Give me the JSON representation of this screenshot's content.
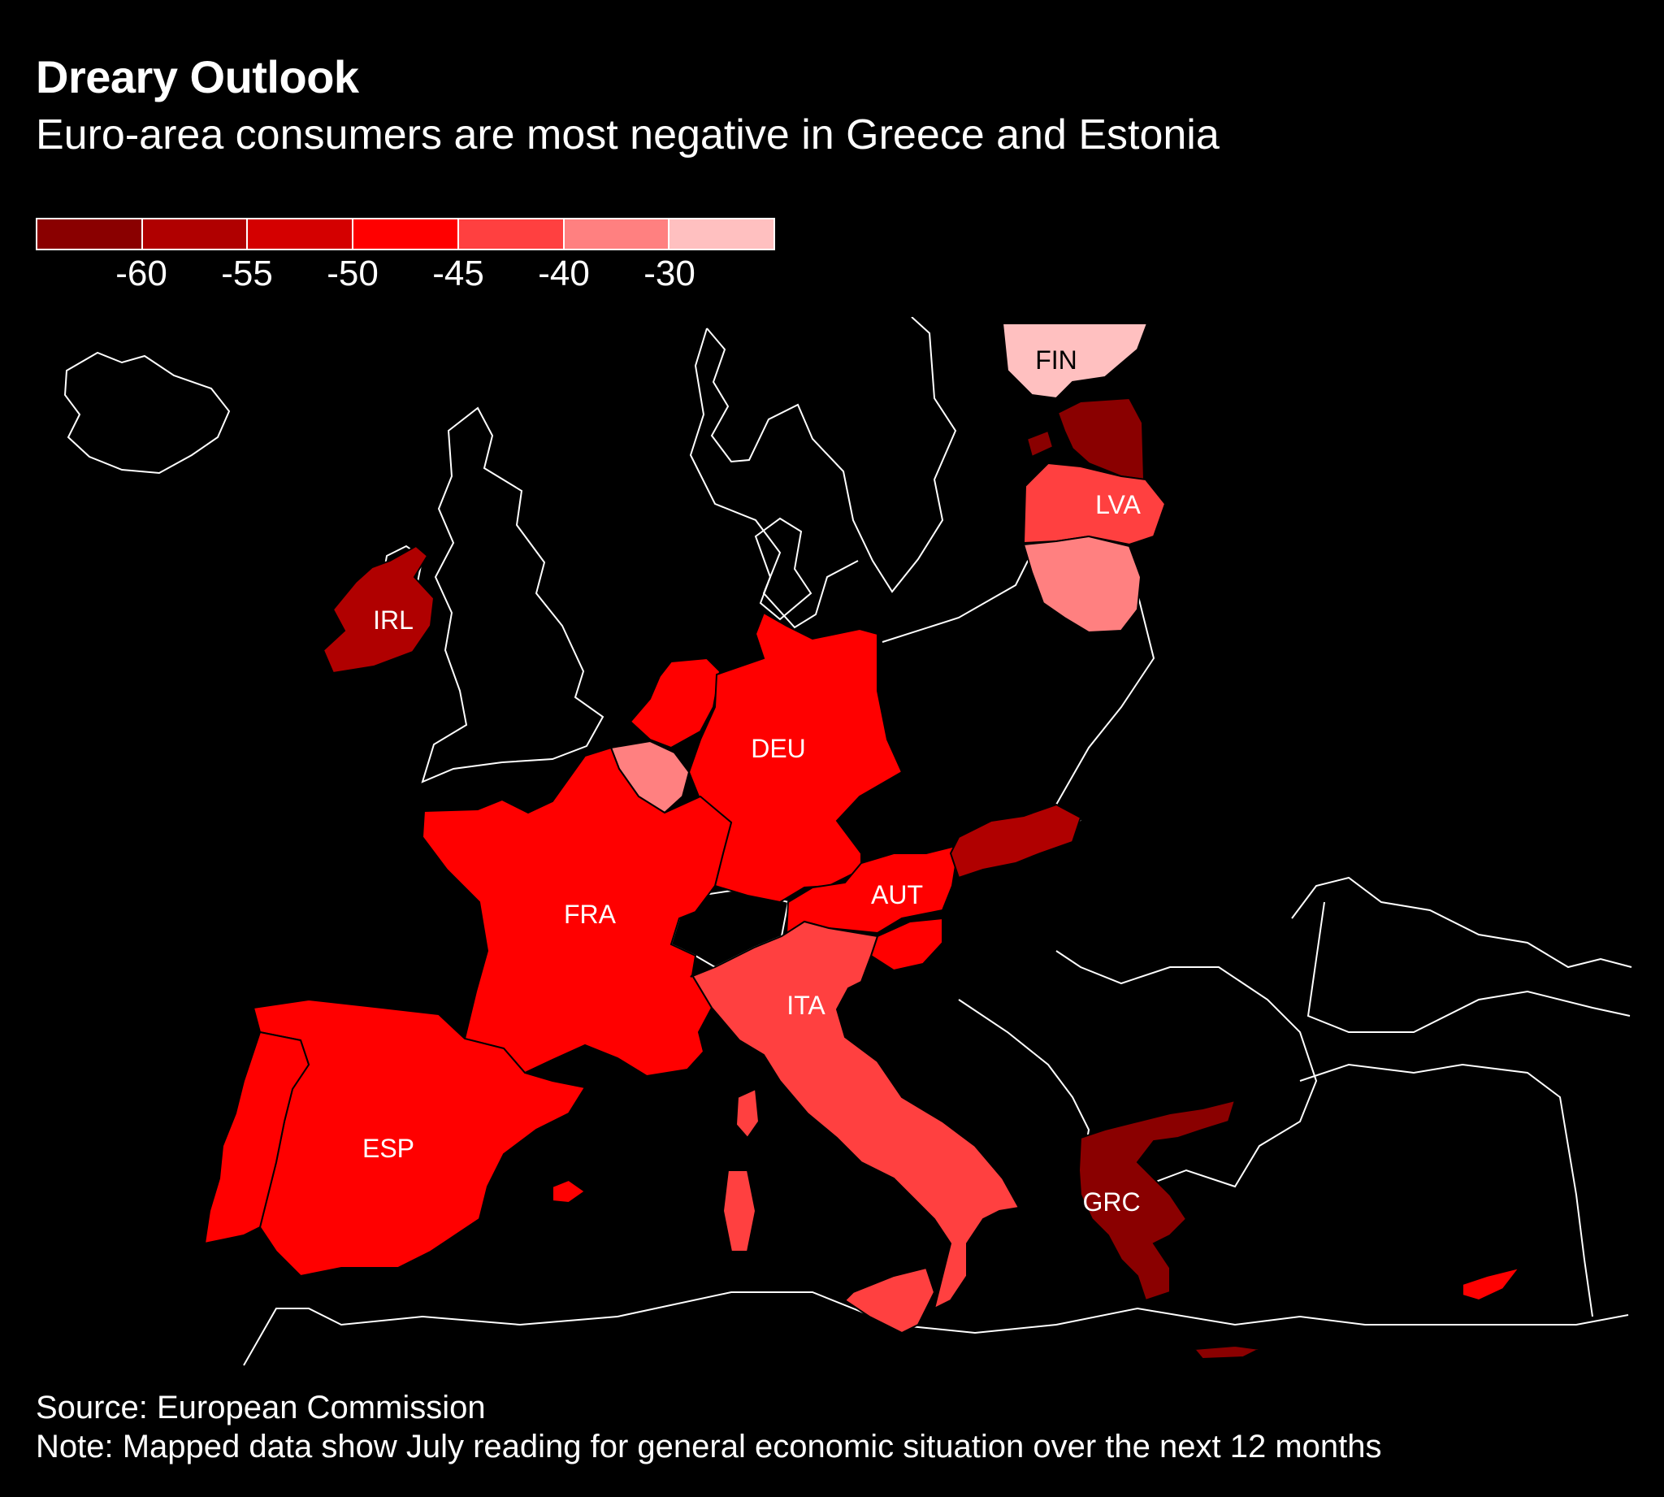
{
  "title": "Dreary Outlook",
  "subtitle": "Euro-area consumers are most negative in Greece and Estonia",
  "legend": {
    "colors": [
      "#8a0000",
      "#b00000",
      "#d40000",
      "#ff0000",
      "#ff4040",
      "#ff8080",
      "#ffc0c0"
    ],
    "ticks": [
      "-60",
      "-55",
      "-50",
      "-45",
      "-40",
      "-30"
    ]
  },
  "map": {
    "countries": [
      {
        "code": "FIN",
        "color": "#ffc0c0",
        "label": "FIN"
      },
      {
        "code": "EST",
        "color": "#8a0000",
        "label": ""
      },
      {
        "code": "LVA",
        "color": "#ff4040",
        "label": "LVA"
      },
      {
        "code": "LTU",
        "color": "#ff8080",
        "label": ""
      },
      {
        "code": "IRL",
        "color": "#b00000",
        "label": "IRL"
      },
      {
        "code": "NLD",
        "color": "#ff0000",
        "label": ""
      },
      {
        "code": "BEL",
        "color": "#ff8080",
        "label": ""
      },
      {
        "code": "DEU",
        "color": "#ff0000",
        "label": "DEU"
      },
      {
        "code": "FRA",
        "color": "#ff0000",
        "label": "FRA"
      },
      {
        "code": "AUT",
        "color": "#ff0000",
        "label": "AUT"
      },
      {
        "code": "SVK",
        "color": "#b00000",
        "label": ""
      },
      {
        "code": "SVN",
        "color": "#ff0000",
        "label": ""
      },
      {
        "code": "ITA",
        "color": "#ff4040",
        "label": "ITA"
      },
      {
        "code": "ESP",
        "color": "#ff0000",
        "label": "ESP"
      },
      {
        "code": "PRT",
        "color": "#ff0000",
        "label": ""
      },
      {
        "code": "GRC",
        "color": "#8a0000",
        "label": "GRC"
      },
      {
        "code": "CYP",
        "color": "#ff0000",
        "label": ""
      }
    ]
  },
  "source": "Source: European Commission",
  "note": "Note: Mapped data show July reading for general economic situation over the next 12 months"
}
